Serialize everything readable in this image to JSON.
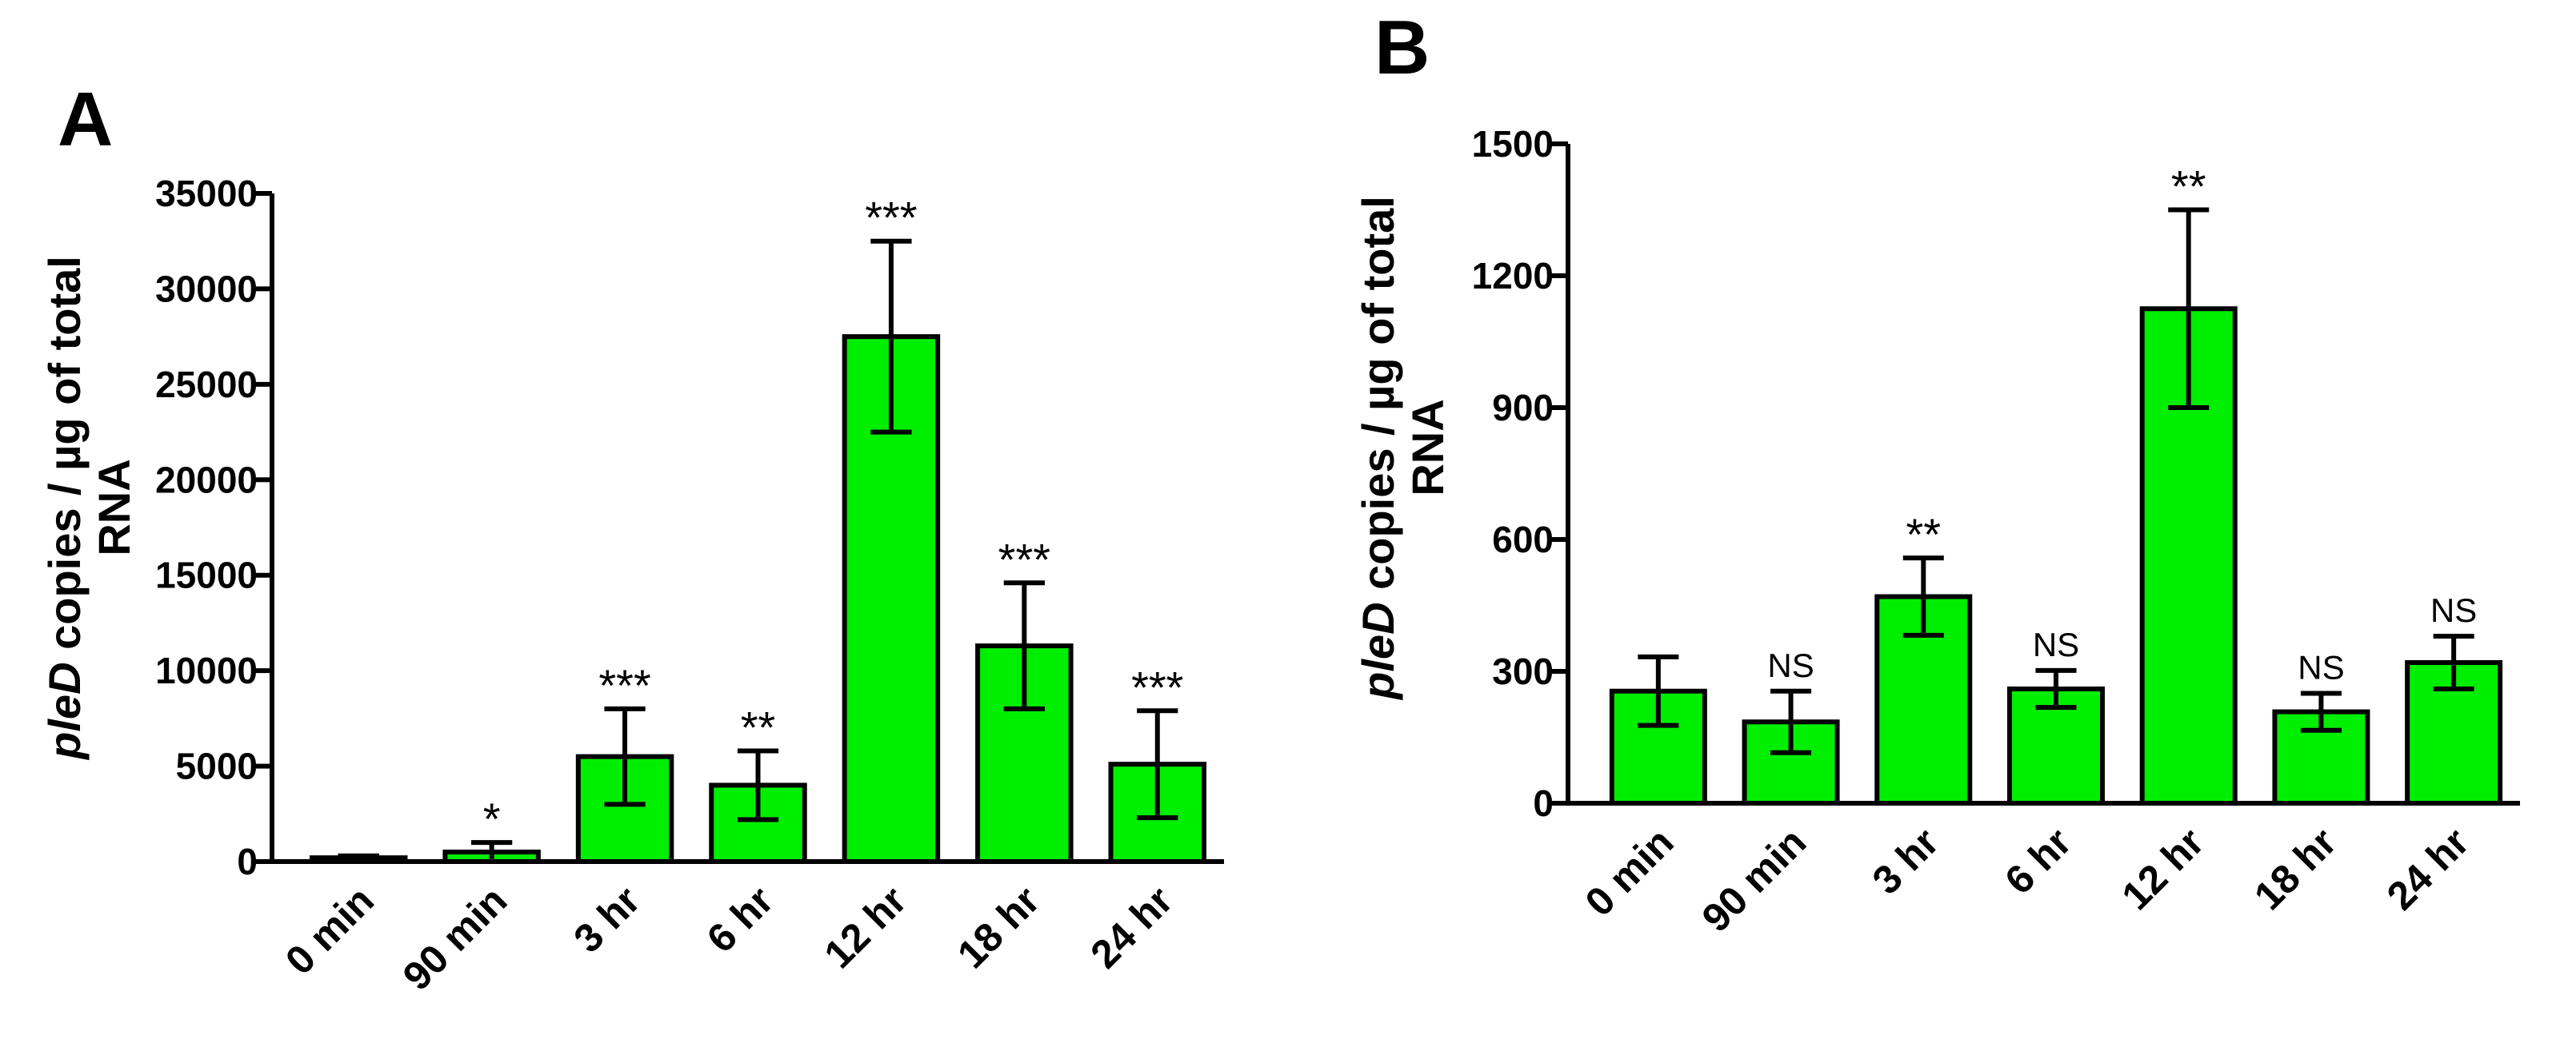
{
  "chart_data": [
    {
      "panel": "A",
      "type": "bar",
      "ylabel_italic": "pleD",
      "ylabel_line1_rest": " copies / µg of total",
      "ylabel_line2": "RNA",
      "categories": [
        "0 min",
        "90 min",
        "3 hr",
        "6 hr",
        "12 hr",
        "18 hr",
        "24 hr"
      ],
      "values": [
        200,
        500,
        5500,
        4000,
        27500,
        11300,
        5100
      ],
      "errors": [
        100,
        500,
        2500,
        1800,
        5000,
        3300,
        2800
      ],
      "significance": [
        "",
        "*",
        "***",
        "**",
        "***",
        "***",
        "***"
      ],
      "ylim": [
        0,
        35000
      ],
      "yticks": [
        0,
        5000,
        10000,
        15000,
        20000,
        25000,
        30000,
        35000
      ],
      "bar_color": "#00ee00"
    },
    {
      "panel": "B",
      "type": "bar",
      "ylabel_italic": "pleD",
      "ylabel_line1_rest": " copies / µg of total",
      "ylabel_line2": "RNA",
      "categories": [
        "0 min",
        "90 min",
        "3 hr",
        "6 hr",
        "12 hr",
        "18 hr",
        "24 hr"
      ],
      "values": [
        255,
        185,
        470,
        260,
        1125,
        208,
        320
      ],
      "errors": [
        78,
        70,
        88,
        42,
        225,
        42,
        60
      ],
      "significance": [
        "",
        "NS",
        "**",
        "NS",
        "**",
        "NS",
        "NS"
      ],
      "ylim": [
        0,
        1500
      ],
      "yticks": [
        0,
        300,
        600,
        900,
        1200,
        1500
      ],
      "bar_color": "#00ee00"
    }
  ]
}
